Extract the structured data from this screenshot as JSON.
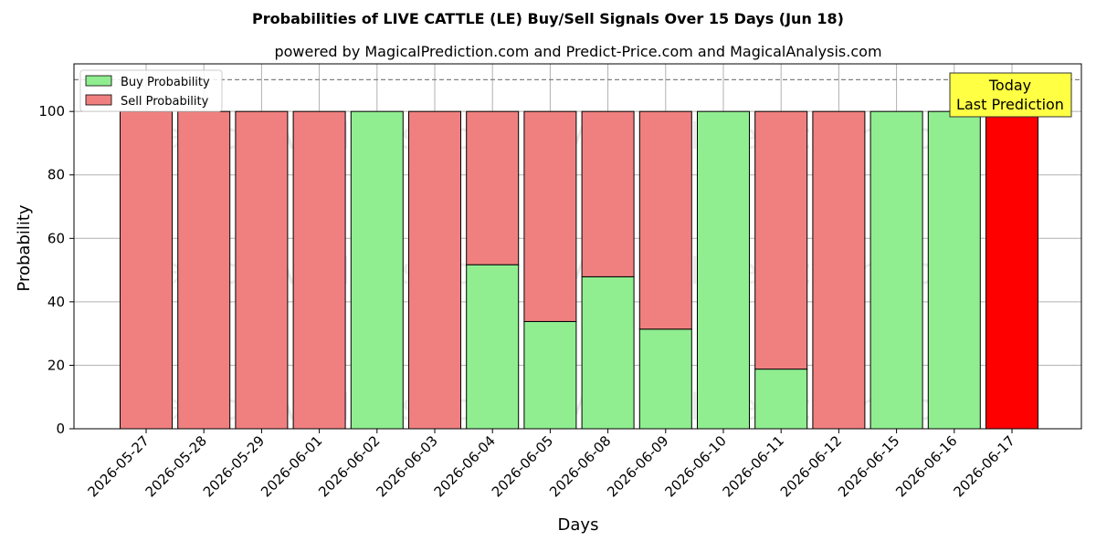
{
  "chart_data": {
    "type": "bar",
    "stacked": true,
    "title": "Probabilities of LIVE CATTLE (LE) Buy/Sell Signals Over 15 Days (Jun 18)",
    "subtitle": "powered by MagicalPrediction.com and Predict-Price.com and MagicalAnalysis.com",
    "xlabel": "Days",
    "ylabel": "Probability",
    "ylim": [
      0,
      115
    ],
    "yticks": [
      0,
      20,
      40,
      60,
      80,
      100
    ],
    "grid": true,
    "legend_position": "top-left",
    "categories": [
      "2026-05-27",
      "2026-05-28",
      "2026-05-29",
      "2026-06-01",
      "2026-06-02",
      "2026-06-03",
      "2026-06-04",
      "2026-06-05",
      "2026-06-08",
      "2026-06-09",
      "2026-06-10",
      "2026-06-11",
      "2026-06-12",
      "2026-06-15",
      "2026-06-16",
      "2026-06-17"
    ],
    "series": [
      {
        "name": "Buy Probability",
        "color": "#90ee90",
        "values": [
          0,
          0,
          0,
          0,
          100,
          0,
          51.7,
          33.8,
          47.9,
          31.4,
          100,
          18.8,
          0,
          100,
          100,
          0
        ]
      },
      {
        "name": "Sell Probability",
        "color": "#f08080",
        "values": [
          100,
          100,
          100,
          100,
          0,
          100,
          48.3,
          66.2,
          52.1,
          68.6,
          0,
          81.2,
          100,
          0,
          0,
          100
        ]
      }
    ],
    "highlight": {
      "category": "2026-06-17",
      "color": "#ff0000"
    },
    "reference_line": {
      "y": 110,
      "style": "dashed",
      "color": "#808080"
    },
    "annotation": {
      "line1": "Today",
      "line2": "Last Prediction",
      "background": "#ffff44"
    },
    "watermarks": [
      "MagicalAnalysis.com",
      "MagicalPrediction.com"
    ]
  }
}
